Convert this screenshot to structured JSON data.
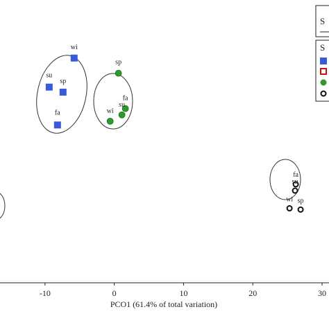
{
  "chart_data": {
    "type": "scatter",
    "xlabel": "PCO1 (61.4% of total variation)",
    "ylabel": "",
    "xlim": [
      -16.5,
      31
    ],
    "ylim": [
      -8.2,
      14.2
    ],
    "xticks": [
      -10,
      0,
      10,
      20,
      30
    ],
    "xtick_labels": [
      "-10",
      "0",
      "10",
      "20",
      "30"
    ],
    "grid": false,
    "legend": {
      "placement": "top-right",
      "box1_label": "S",
      "box2_label": "S"
    },
    "series": [
      {
        "marker": "filled-square",
        "color": "#3a5bd9",
        "points": [
          {
            "label": "wi",
            "x": -5.8,
            "y": 9.6
          },
          {
            "label": "su",
            "x": -9.4,
            "y": 7.3
          },
          {
            "label": "sp",
            "x": -7.4,
            "y": 6.9
          },
          {
            "label": "fa",
            "x": -8.2,
            "y": 4.3
          }
        ]
      },
      {
        "marker": "filled-circle",
        "color": "#2e9a2e",
        "points": [
          {
            "label": "sp",
            "x": 0.6,
            "y": 8.4
          },
          {
            "label": "fa",
            "x": 1.6,
            "y": 5.6
          },
          {
            "label": "su",
            "x": 1.1,
            "y": 5.1
          },
          {
            "label": "wi",
            "x": -0.6,
            "y": 4.6
          }
        ]
      },
      {
        "marker": "open-circle",
        "color": "#111111",
        "points": [
          {
            "label": "fa",
            "x": 26.2,
            "y": -0.4
          },
          {
            "label": "su",
            "x": 26.1,
            "y": -0.9
          },
          {
            "label": "wi",
            "x": 25.3,
            "y": -2.3
          },
          {
            "label": "sp",
            "x": 26.9,
            "y": -2.4
          }
        ]
      }
    ],
    "legend_markers": [
      {
        "marker": "filled-square",
        "color": "#3a5bd9"
      },
      {
        "marker": "open-square",
        "color": "#cc1111"
      },
      {
        "marker": "filled-circle",
        "color": "#2e9a2e"
      },
      {
        "marker": "open-circle",
        "color": "#111111"
      }
    ]
  }
}
